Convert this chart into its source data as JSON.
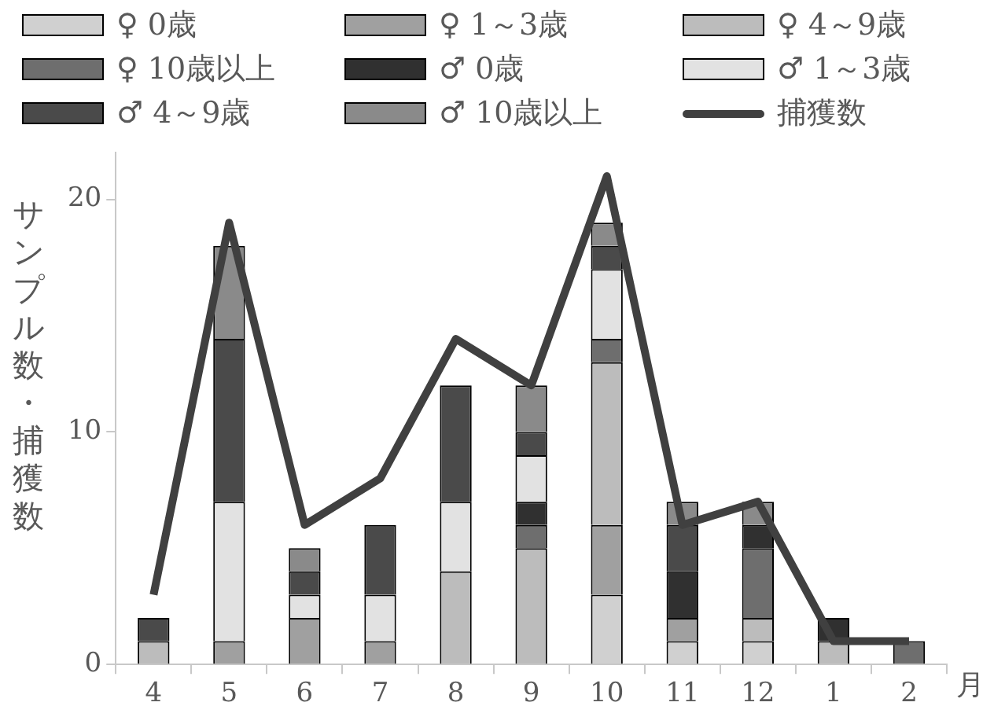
{
  "chart_data": {
    "type": "bar",
    "stacked": true,
    "xlabel": "月",
    "ylabel": "サンプル数・捕獲数",
    "categories": [
      "4",
      "5",
      "6",
      "7",
      "8",
      "9",
      "10",
      "11",
      "12",
      "1",
      "2"
    ],
    "series": [
      {
        "name": "♀ 0歳",
        "color": "#d0d0d0",
        "values": [
          null,
          null,
          null,
          null,
          null,
          null,
          3,
          1,
          1,
          null,
          null
        ]
      },
      {
        "name": "♀ 1～3歳",
        "color": "#a0a0a0",
        "values": [
          null,
          1,
          2,
          1,
          null,
          null,
          3,
          1,
          null,
          null,
          null
        ]
      },
      {
        "name": "♀ 4～9歳",
        "color": "#bcbcbc",
        "values": [
          1,
          null,
          null,
          null,
          4,
          5,
          7,
          null,
          1,
          1,
          null
        ]
      },
      {
        "name": "♀ 10歳以上",
        "color": "#6e6e6e",
        "values": [
          null,
          null,
          null,
          null,
          null,
          1,
          1,
          null,
          3,
          null,
          1
        ]
      },
      {
        "name": "♂ 0歳",
        "color": "#303030",
        "values": [
          null,
          null,
          null,
          null,
          null,
          1,
          null,
          2,
          1,
          1,
          null
        ]
      },
      {
        "name": "♂ 1～3歳",
        "color": "#e2e2e2",
        "values": [
          null,
          6,
          1,
          2,
          3,
          2,
          3,
          null,
          null,
          null,
          null
        ]
      },
      {
        "name": "♂ 4～9歳",
        "color": "#4a4a4a",
        "values": [
          1,
          7,
          1,
          3,
          5,
          1,
          1,
          2,
          null,
          null,
          null
        ]
      },
      {
        "name": "♂ 10歳以上",
        "color": "#8a8a8a",
        "values": [
          null,
          4,
          1,
          null,
          null,
          2,
          1,
          1,
          1,
          null,
          null
        ]
      },
      {
        "name": "捕獲数",
        "type": "line",
        "color": "#404040",
        "marker": "none",
        "values": [
          3,
          19,
          6,
          8,
          14,
          12,
          21,
          6,
          7,
          1,
          1
        ]
      }
    ],
    "ylim": [
      0,
      22
    ],
    "yticks": [
      0,
      10,
      20
    ],
    "grid": false,
    "legend": "top"
  }
}
